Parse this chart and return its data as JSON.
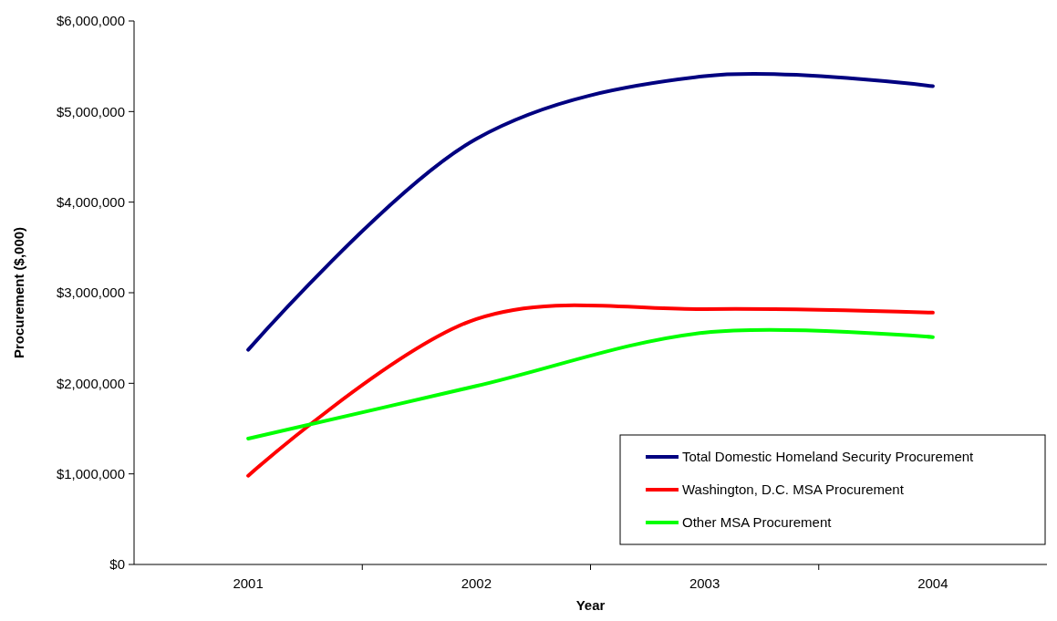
{
  "chart_data": {
    "type": "line",
    "xlabel": "Year",
    "ylabel": "Procurement ($,000)",
    "categories": [
      "2001",
      "2002",
      "2003",
      "2004"
    ],
    "series": [
      {
        "name": "Total Domestic Homeland Security Procurement",
        "color": "#000080",
        "values": [
          2370000,
          4700000,
          5390000,
          5280000
        ]
      },
      {
        "name": "Washington, D.C. MSA Procurement",
        "color": "#ff0000",
        "values": [
          980000,
          2710000,
          2820000,
          2780000
        ]
      },
      {
        "name": "Other MSA Procurement",
        "color": "#00ff00",
        "values": [
          1390000,
          1970000,
          2560000,
          2510000
        ]
      }
    ],
    "ylim": [
      0,
      6000000
    ],
    "yticks": [
      {
        "value": 0,
        "label": "$0"
      },
      {
        "value": 1000000,
        "label": "$1,000,000"
      },
      {
        "value": 2000000,
        "label": "$2,000,000"
      },
      {
        "value": 3000000,
        "label": "$3,000,000"
      },
      {
        "value": 4000000,
        "label": "$4,000,000"
      },
      {
        "value": 5000000,
        "label": "$5,000,000"
      },
      {
        "value": 6000000,
        "label": "$6,000,000"
      }
    ],
    "grid": false,
    "legend": "bottom right",
    "marker": "none",
    "line_style": "solid"
  }
}
